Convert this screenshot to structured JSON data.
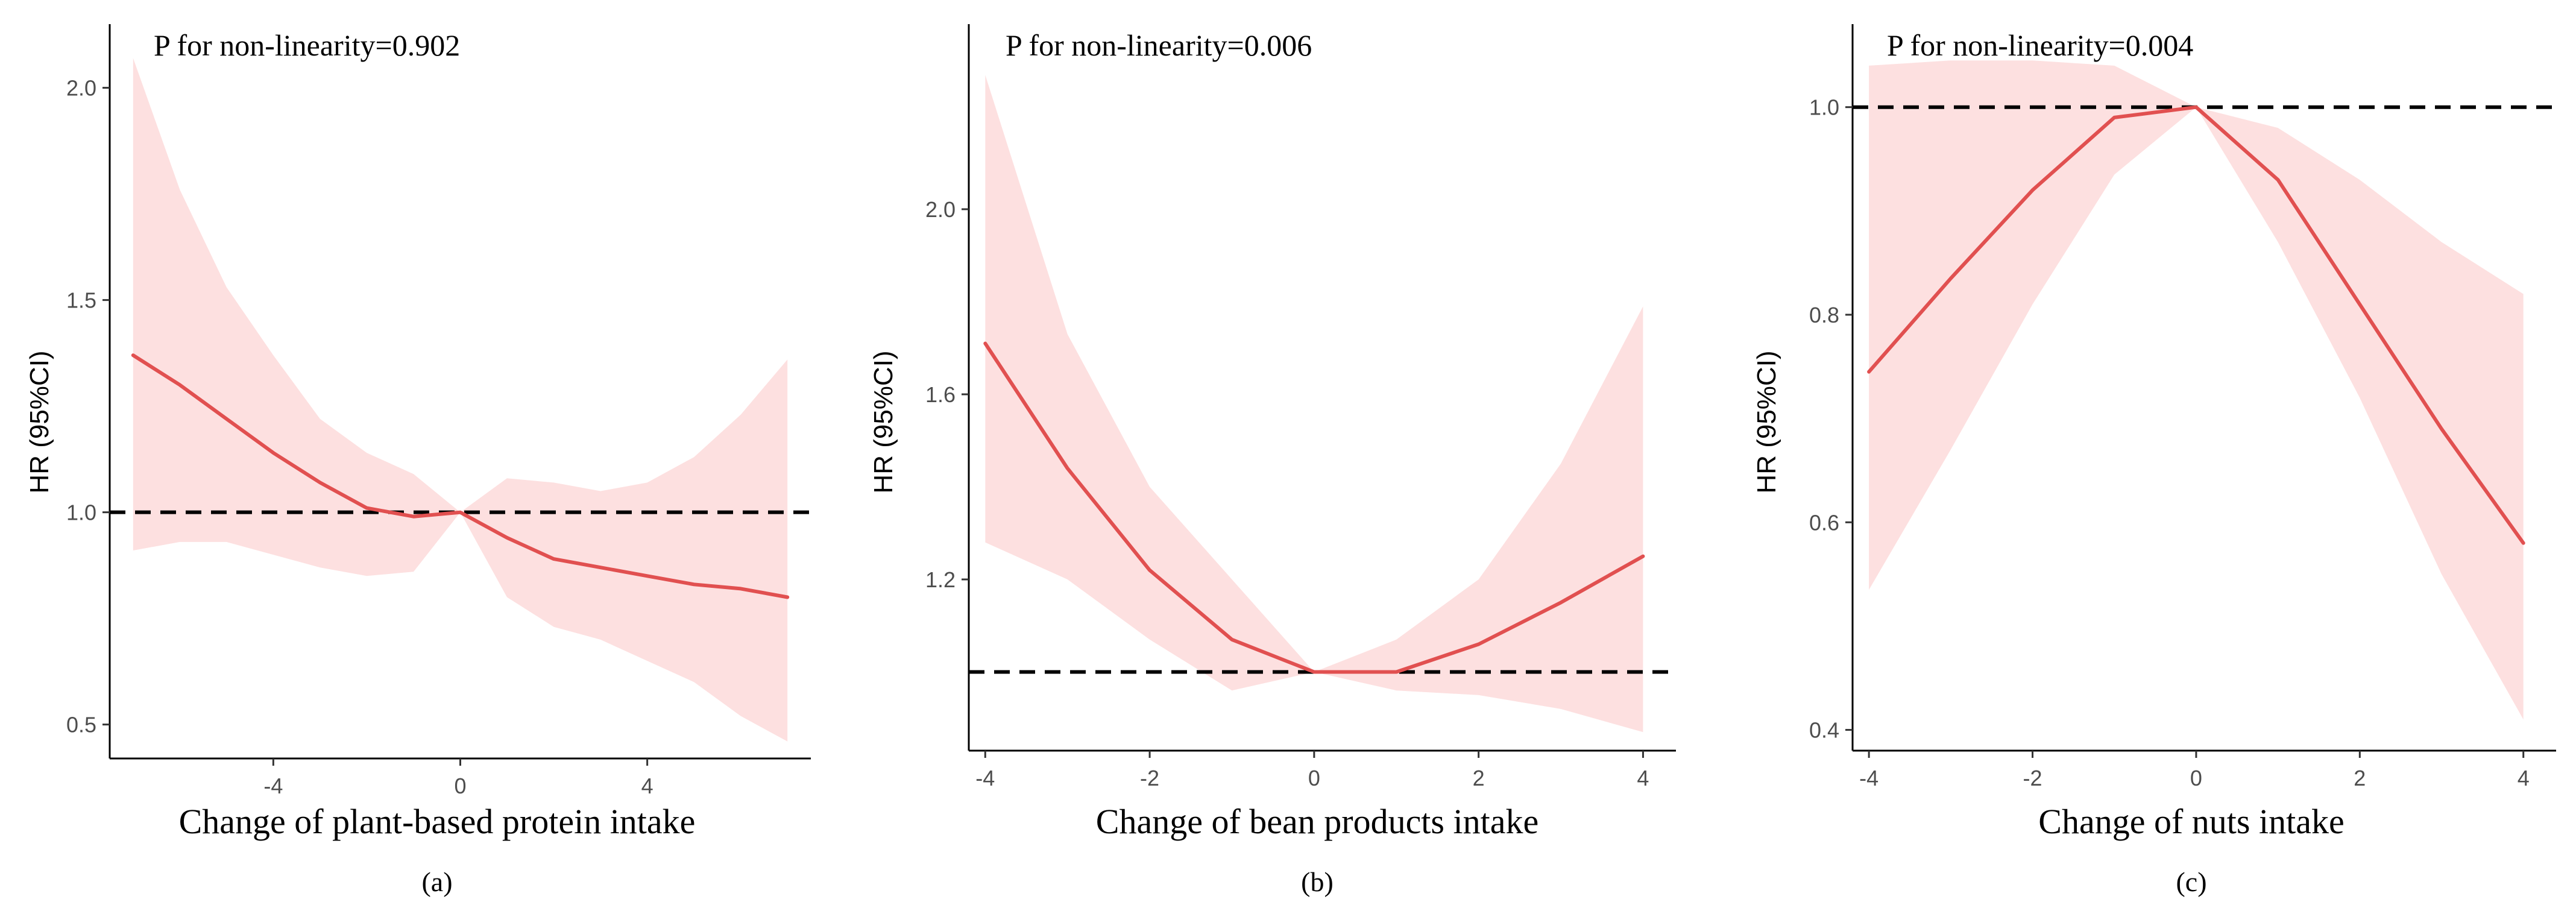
{
  "figure": {
    "background": "#ffffff"
  },
  "chart_data": [
    {
      "type": "line",
      "panel_label": "(a)",
      "annotation": "P for non-linearity=0.902",
      "xlabel": "Change of plant-based protein intake",
      "ylabel": "HR (95%CI)",
      "xlim": [
        -7.5,
        7.5
      ],
      "ylim": [
        0.42,
        2.15
      ],
      "xticks": [
        -4,
        0,
        4
      ],
      "xtick_labels": [
        "-4",
        "0",
        "4"
      ],
      "yticks": [
        0.5,
        1.0,
        1.5,
        2.0
      ],
      "ytick_labels": [
        "0.5",
        "1.0",
        "1.5",
        "2.0"
      ],
      "reference_line": 1.0,
      "series": [
        {
          "name": "HR",
          "color": "#e15050",
          "x": [
            -7,
            -6,
            -5,
            -4,
            -3,
            -2,
            -1,
            0,
            1,
            2,
            3,
            4,
            5,
            6,
            7
          ],
          "y": [
            1.37,
            1.3,
            1.22,
            1.14,
            1.07,
            1.01,
            0.99,
            1.0,
            0.94,
            0.89,
            0.87,
            0.85,
            0.83,
            0.82,
            0.8
          ]
        },
        {
          "name": "95% CI",
          "color": "#fde0e0",
          "x": [
            -7,
            -6,
            -5,
            -4,
            -3,
            -2,
            -1,
            0,
            1,
            2,
            3,
            4,
            5,
            6,
            7
          ],
          "lower": [
            0.91,
            0.93,
            0.93,
            0.9,
            0.87,
            0.85,
            0.86,
            1.0,
            0.8,
            0.73,
            0.7,
            0.65,
            0.6,
            0.52,
            0.46
          ],
          "upper": [
            2.07,
            1.76,
            1.53,
            1.37,
            1.22,
            1.14,
            1.09,
            1.0,
            1.08,
            1.07,
            1.05,
            1.07,
            1.13,
            1.23,
            1.36
          ]
        }
      ]
    },
    {
      "type": "line",
      "panel_label": "(b)",
      "annotation": "P for non-linearity=0.006",
      "xlabel": "Change of bean products intake",
      "ylabel": "HR (95%CI)",
      "xlim": [
        -4.2,
        4.4
      ],
      "ylim": [
        0.83,
        2.4
      ],
      "xticks": [
        -4,
        -2,
        0,
        2,
        4
      ],
      "xtick_labels": [
        "-4",
        "-2",
        "0",
        "2",
        "4"
      ],
      "yticks": [
        1.2,
        1.6,
        2.0
      ],
      "ytick_labels": [
        "1.2",
        "1.6",
        "2.0"
      ],
      "reference_line": 1.0,
      "series": [
        {
          "name": "HR",
          "color": "#e15050",
          "x": [
            -4,
            -3,
            -2,
            -1,
            0,
            1,
            2,
            3,
            4
          ],
          "y": [
            1.71,
            1.44,
            1.22,
            1.07,
            1.0,
            1.0,
            1.06,
            1.15,
            1.25
          ]
        },
        {
          "name": "95% CI",
          "color": "#fde0e0",
          "x": [
            -4,
            -3,
            -2,
            -1,
            0,
            1,
            2,
            3,
            4
          ],
          "lower": [
            1.28,
            1.2,
            1.07,
            0.96,
            1.0,
            0.96,
            0.95,
            0.92,
            0.87
          ],
          "upper": [
            2.29,
            1.73,
            1.4,
            1.2,
            1.0,
            1.07,
            1.2,
            1.45,
            1.79
          ]
        }
      ]
    },
    {
      "type": "line",
      "panel_label": "(c)",
      "annotation": "P for non-linearity=0.004",
      "xlabel": "Change of nuts intake",
      "ylabel": "HR (95%CI)",
      "xlim": [
        -4.2,
        4.4
      ],
      "ylim": [
        0.38,
        1.08
      ],
      "xticks": [
        -4,
        -2,
        0,
        2,
        4
      ],
      "xtick_labels": [
        "-4",
        "-2",
        "0",
        "2",
        "4"
      ],
      "yticks": [
        0.4,
        0.6,
        0.8,
        1.0
      ],
      "ytick_labels": [
        "0.4",
        "0.6",
        "0.8",
        "1.0"
      ],
      "reference_line": 1.0,
      "series": [
        {
          "name": "HR",
          "color": "#e15050",
          "x": [
            -4,
            -3,
            -2,
            -1,
            0,
            1,
            2,
            3,
            4
          ],
          "y": [
            0.745,
            0.835,
            0.92,
            0.99,
            1.0,
            0.93,
            0.81,
            0.69,
            0.58
          ]
        },
        {
          "name": "95% CI",
          "color": "#fde0e0",
          "x": [
            -4,
            -3,
            -2,
            -1,
            0,
            1,
            2,
            3,
            4
          ],
          "lower": [
            0.535,
            0.67,
            0.81,
            0.935,
            1.0,
            0.87,
            0.72,
            0.55,
            0.41
          ],
          "upper": [
            1.04,
            1.045,
            1.045,
            1.04,
            1.0,
            0.98,
            0.93,
            0.87,
            0.82
          ]
        }
      ]
    }
  ]
}
